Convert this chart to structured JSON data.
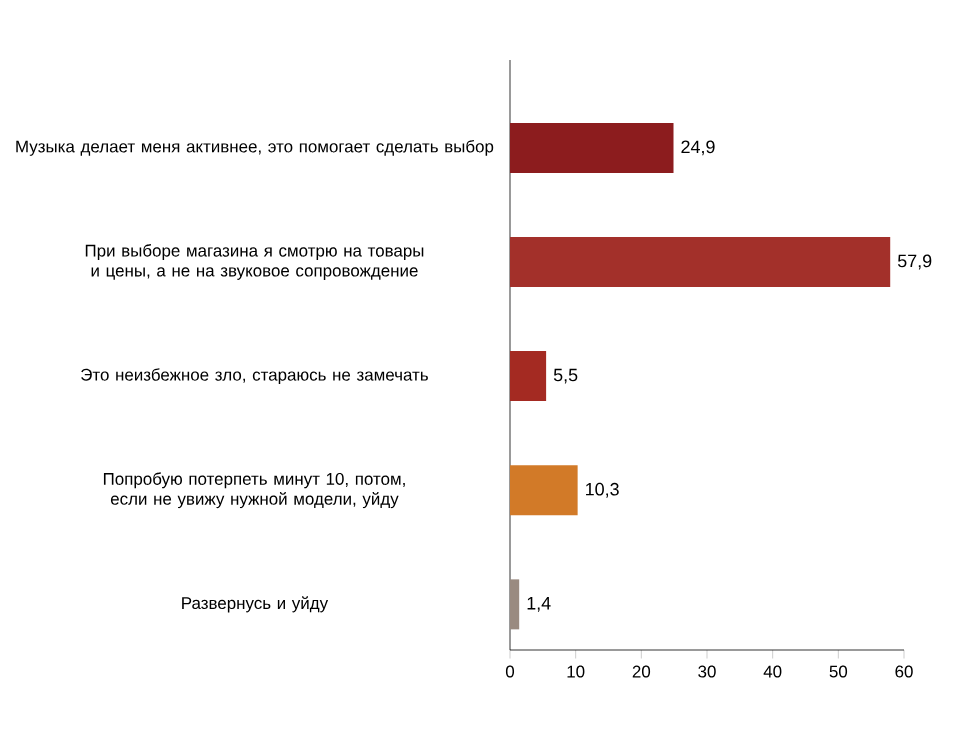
{
  "chart_data": {
    "type": "bar",
    "orientation": "horizontal",
    "categories": [
      "Музыка делает меня активнее, это помогает сделать выбор",
      "При выборе магазина я смотрю на товары и цены, а не на звуковое сопровождение",
      "Это неизбежное зло, стараюсь не замечать",
      "Попробую потерпеть минут 10, потом, если не увижу нужной модели, уйду",
      "Развернусь и уйду"
    ],
    "values": [
      24.9,
      57.9,
      5.5,
      10.3,
      1.4
    ],
    "value_labels": [
      "24,9",
      "57,9",
      "5,5",
      "10,3",
      "1,4"
    ],
    "colors": [
      "#8c1c1e",
      "#a3302a",
      "#a42a22",
      "#d27a28",
      "#9a8a80"
    ],
    "xlim": [
      0,
      60
    ],
    "xticks": [
      0,
      10,
      20,
      30,
      40,
      50,
      60
    ]
  }
}
